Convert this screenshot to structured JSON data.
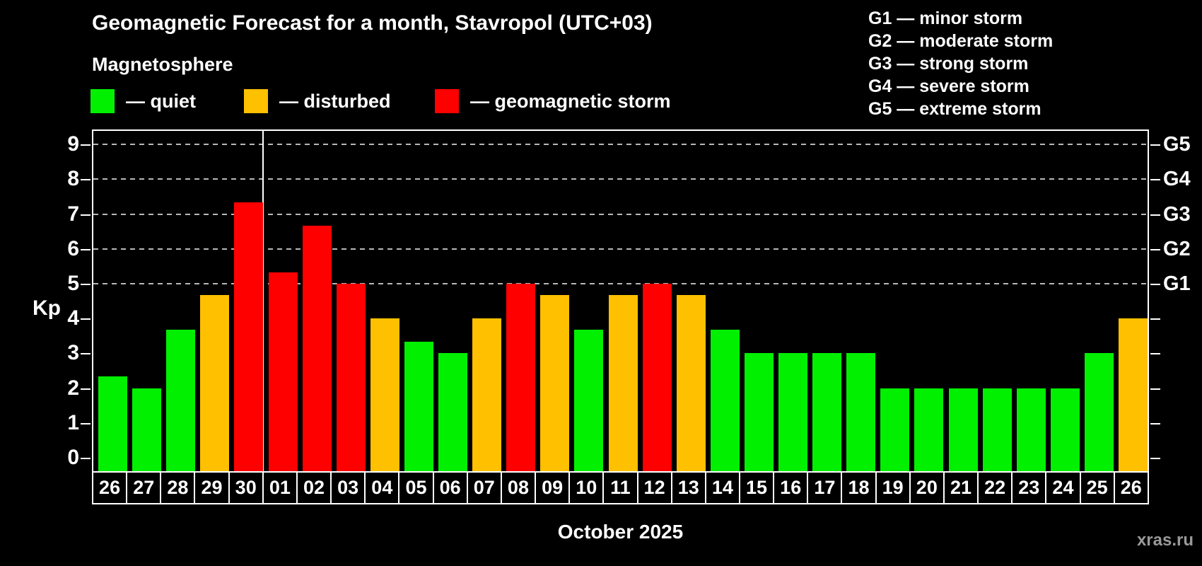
{
  "title": "Geomagnetic Forecast for a month, Stavropol (UTC+03)",
  "subtitle": "Magnetosphere",
  "legend": {
    "items": [
      {
        "status": "quiet",
        "label": "— quiet",
        "color": "#00f000"
      },
      {
        "status": "disturbed",
        "label": "— disturbed",
        "color": "#ffc000"
      },
      {
        "status": "storm",
        "label": "— geomagnetic storm",
        "color": "#ff0000"
      }
    ]
  },
  "g_scale": [
    "G1 — minor storm",
    "G2 — moderate storm",
    "G3 — strong storm",
    "G4 — severe storm",
    "G5 — extreme storm"
  ],
  "y_axis": {
    "label": "Kp",
    "ticks": [
      "0",
      "1",
      "2",
      "3",
      "4",
      "5",
      "6",
      "7",
      "8",
      "9"
    ]
  },
  "right_axis": {
    "labels": [
      {
        "label": "G1",
        "kp": 5
      },
      {
        "label": "G2",
        "kp": 6
      },
      {
        "label": "G3",
        "kp": 7
      },
      {
        "label": "G4",
        "kp": 8
      },
      {
        "label": "G5",
        "kp": 9
      }
    ]
  },
  "footer": {
    "month_label": "October 2025",
    "watermark": "xras.ru"
  },
  "chart_data": {
    "type": "bar",
    "title": "Geomagnetic Forecast for a month, Stavropol (UTC+03)",
    "xlabel": "October 2025",
    "ylabel": "Kp",
    "ylim": [
      0,
      9.4
    ],
    "grid": "dashed horizontal at Kp 5-9 only",
    "gridlines_at": [
      5,
      6,
      7,
      8,
      9
    ],
    "categories": [
      "26",
      "27",
      "28",
      "29",
      "30",
      "01",
      "02",
      "03",
      "04",
      "05",
      "06",
      "07",
      "08",
      "09",
      "10",
      "11",
      "12",
      "13",
      "14",
      "15",
      "16",
      "17",
      "18",
      "19",
      "20",
      "21",
      "22",
      "23",
      "24",
      "25",
      "26"
    ],
    "series": [
      {
        "name": "Kp forecast",
        "values": [
          2.33,
          2,
          3.67,
          4.67,
          7.33,
          5.33,
          6.67,
          5,
          4,
          3.33,
          3,
          4,
          5,
          4.67,
          3.67,
          4.67,
          5,
          4.67,
          3.67,
          3,
          3,
          3,
          3,
          2,
          2,
          2,
          2,
          2,
          2,
          3,
          4
        ]
      }
    ],
    "point_status": [
      "quiet",
      "quiet",
      "quiet",
      "disturbed",
      "storm",
      "storm",
      "storm",
      "storm",
      "disturbed",
      "quiet",
      "quiet",
      "disturbed",
      "storm",
      "disturbed",
      "quiet",
      "disturbed",
      "storm",
      "disturbed",
      "quiet",
      "quiet",
      "quiet",
      "quiet",
      "quiet",
      "quiet",
      "quiet",
      "quiet",
      "quiet",
      "quiet",
      "quiet",
      "quiet",
      "disturbed"
    ],
    "month_separator_after_index": 4
  }
}
